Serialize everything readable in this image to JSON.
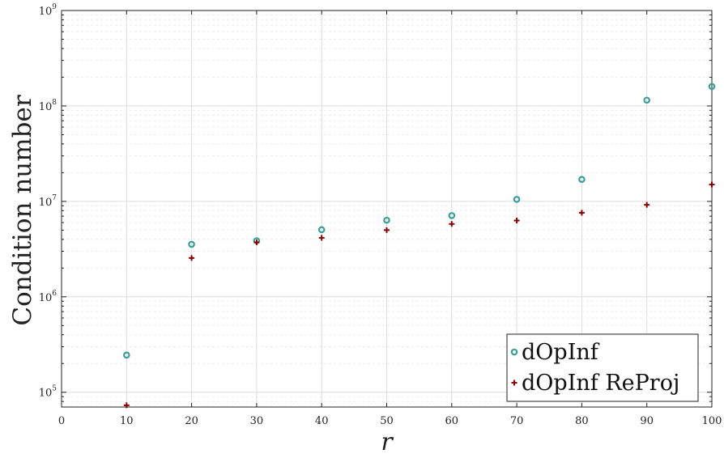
{
  "chart_data": {
    "type": "scatter",
    "title": "",
    "xlabel": "r",
    "ylabel": "Condition number",
    "xlim": [
      0,
      100
    ],
    "ylim": [
      70000,
      1000000000
    ],
    "yscale": "log",
    "grid": true,
    "legend_position": "bottom-right",
    "x_ticks": [
      0,
      10,
      20,
      30,
      40,
      50,
      60,
      70,
      80,
      90,
      100
    ],
    "x_tick_labels": [
      "0",
      "10",
      "20",
      "30",
      "40",
      "50",
      "60",
      "70",
      "80",
      "90",
      "100"
    ],
    "y_ticks": [
      100000,
      1000000,
      10000000,
      100000000,
      1000000000
    ],
    "y_tick_labels": [
      {
        "base": "10",
        "exp": "5"
      },
      {
        "base": "10",
        "exp": "6"
      },
      {
        "base": "10",
        "exp": "7"
      },
      {
        "base": "10",
        "exp": "8"
      },
      {
        "base": "10",
        "exp": "9"
      }
    ],
    "x": [
      10,
      20,
      30,
      40,
      50,
      60,
      70,
      80,
      90,
      100
    ],
    "series": [
      {
        "name": "dOpInf",
        "marker": "circle",
        "color": "#3a9e9a",
        "values": [
          245000,
          3550000,
          3870000,
          5050000,
          6350000,
          7100000,
          10500000,
          17000000,
          115000000,
          160000000
        ]
      },
      {
        "name": "dOpInf ReProj",
        "marker": "plus",
        "color": "#8b0000",
        "values": [
          73000,
          2550000,
          3720000,
          4150000,
          5000000,
          5800000,
          6300000,
          7600000,
          9200000,
          15000000
        ]
      }
    ]
  }
}
